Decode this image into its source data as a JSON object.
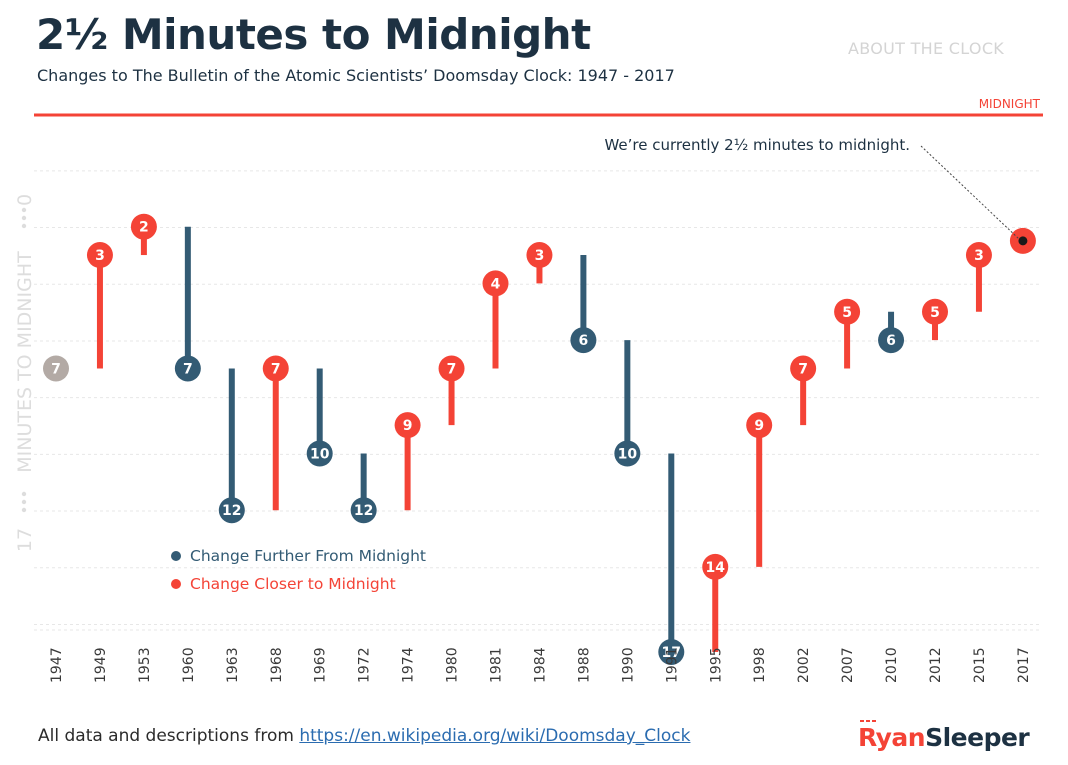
{
  "header": {
    "title": "2½ Minutes to Midnight",
    "subtitle": "Changes to The Bulletin of the Atomic Scientists’ Doomsday Clock: 1947 - 2017",
    "about_label": "ABOUT THE CLOCK"
  },
  "footer": {
    "prefix": "All data and descriptions from ",
    "link_text": "https://en.wikipedia.org/wiki/Doomsday_Clock"
  },
  "logo": {
    "text_a": "Ryan",
    "text_b": "Sleeper"
  },
  "colors": {
    "further": "#335b74",
    "closer": "#f44336",
    "initial": "#b3aaa5",
    "dark": "#1d3142",
    "axis_label": "#dddddd"
  },
  "chart_data": {
    "type": "lollipop",
    "title": "2½ Minutes to Midnight",
    "subtitle": "Changes to The Bulletin of the Atomic Scientists’ Doomsday Clock: 1947 - 2017",
    "ylabel": "MINUTES TO MIDNIGHT",
    "y_axis_ends": [
      "0",
      "17"
    ],
    "ylim": [
      0,
      17
    ],
    "y_reversed": true,
    "midnight_label": "MIDNIGHT",
    "annotation": "We’re currently 2½ minutes to midnight.",
    "legend": {
      "further": "Change Further From Midnight",
      "closer": "Change Closer to Midnight"
    },
    "points": [
      {
        "year": "1947",
        "minutes": 7,
        "prev": 7,
        "label": "7",
        "kind": "initial"
      },
      {
        "year": "1949",
        "minutes": 3,
        "prev": 7,
        "label": "3",
        "kind": "closer"
      },
      {
        "year": "1953",
        "minutes": 2,
        "prev": 3,
        "label": "2",
        "kind": "closer"
      },
      {
        "year": "1960",
        "minutes": 7,
        "prev": 2,
        "label": "7",
        "kind": "further"
      },
      {
        "year": "1963",
        "minutes": 12,
        "prev": 7,
        "label": "12",
        "kind": "further"
      },
      {
        "year": "1968",
        "minutes": 7,
        "prev": 12,
        "label": "7",
        "kind": "closer"
      },
      {
        "year": "1969",
        "minutes": 10,
        "prev": 7,
        "label": "10",
        "kind": "further"
      },
      {
        "year": "1972",
        "minutes": 12,
        "prev": 10,
        "label": "12",
        "kind": "further"
      },
      {
        "year": "1974",
        "minutes": 9,
        "prev": 12,
        "label": "9",
        "kind": "closer"
      },
      {
        "year": "1980",
        "minutes": 7,
        "prev": 9,
        "label": "7",
        "kind": "closer"
      },
      {
        "year": "1981",
        "minutes": 4,
        "prev": 7,
        "label": "4",
        "kind": "closer"
      },
      {
        "year": "1984",
        "minutes": 3,
        "prev": 4,
        "label": "3",
        "kind": "closer"
      },
      {
        "year": "1988",
        "minutes": 6,
        "prev": 3,
        "label": "6",
        "kind": "further"
      },
      {
        "year": "1990",
        "minutes": 10,
        "prev": 6,
        "label": "10",
        "kind": "further"
      },
      {
        "year": "1991",
        "minutes": 17,
        "prev": 10,
        "label": "17",
        "kind": "further"
      },
      {
        "year": "1995",
        "minutes": 14,
        "prev": 17,
        "label": "14",
        "kind": "closer"
      },
      {
        "year": "1998",
        "minutes": 9,
        "prev": 14,
        "label": "9",
        "kind": "closer"
      },
      {
        "year": "2002",
        "minutes": 7,
        "prev": 9,
        "label": "7",
        "kind": "closer"
      },
      {
        "year": "2007",
        "minutes": 5,
        "prev": 7,
        "label": "5",
        "kind": "closer"
      },
      {
        "year": "2010",
        "minutes": 6,
        "prev": 5,
        "label": "6",
        "kind": "further"
      },
      {
        "year": "2012",
        "minutes": 5,
        "prev": 6,
        "label": "5",
        "kind": "closer"
      },
      {
        "year": "2015",
        "minutes": 3,
        "prev": 5,
        "label": "3",
        "kind": "closer"
      },
      {
        "year": "2017",
        "minutes": 2.5,
        "prev": 3,
        "label": "",
        "kind": "current"
      }
    ]
  }
}
